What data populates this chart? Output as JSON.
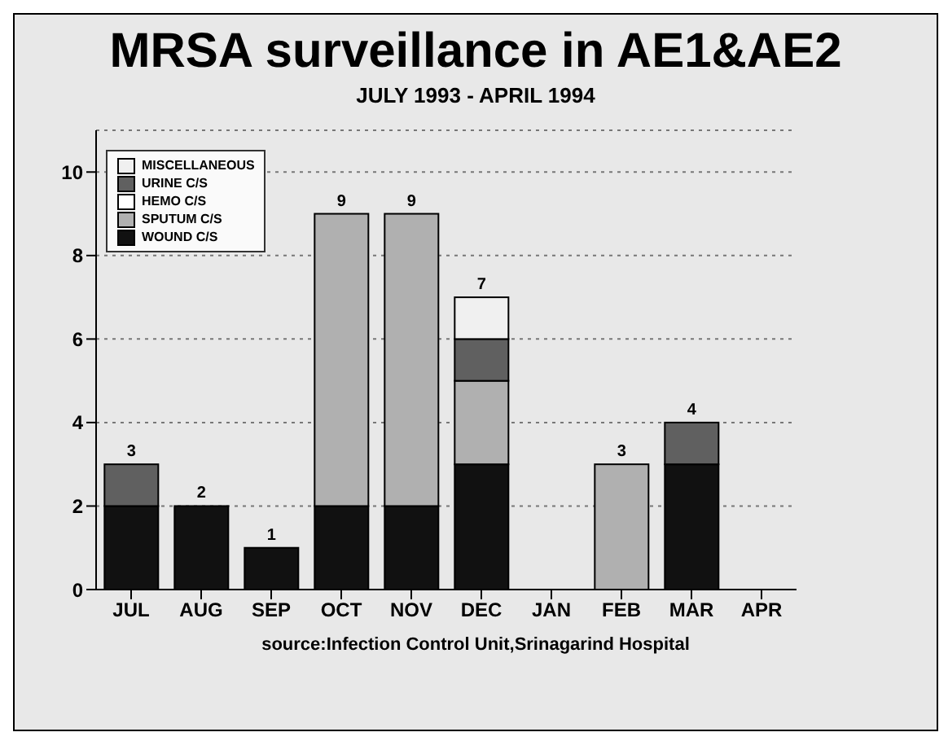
{
  "chart_data": {
    "type": "bar",
    "title": "MRSA surveillance in AE1&AE2",
    "subtitle": "JULY 1993 - APRIL 1994",
    "categories": [
      "JUL",
      "AUG",
      "SEP",
      "OCT",
      "NOV",
      "DEC",
      "JAN",
      "FEB",
      "MAR",
      "APR"
    ],
    "stacked": true,
    "series": [
      {
        "name": "WOUND C/S",
        "color": "#111111",
        "values": [
          2,
          2,
          1,
          2,
          2,
          3,
          0,
          0,
          3,
          0
        ]
      },
      {
        "name": "SPUTUM C/S",
        "color": "#b0b0b0",
        "values": [
          0,
          0,
          0,
          7,
          7,
          2,
          0,
          3,
          0,
          0
        ]
      },
      {
        "name": "HEMO C/S",
        "color": "#ffffff",
        "values": [
          0,
          0,
          0,
          0,
          0,
          0,
          0,
          0,
          0,
          0
        ]
      },
      {
        "name": "URINE C/S",
        "color": "#606060",
        "values": [
          1,
          0,
          0,
          0,
          0,
          1,
          0,
          0,
          1,
          0
        ]
      },
      {
        "name": "MISCELLANEOUS",
        "color": "#f0f0f0",
        "values": [
          0,
          0,
          0,
          0,
          0,
          1,
          0,
          0,
          0,
          0
        ]
      }
    ],
    "totals": [
      "3",
      "2",
      "1",
      "9",
      "9",
      "7",
      null,
      "3",
      "4",
      null
    ],
    "ylim": [
      0,
      11
    ],
    "yticks": [
      0,
      2,
      4,
      6,
      8,
      10
    ],
    "grid": "y",
    "legend": "top left",
    "annotations": [
      "source:Infection Control Unit,Srinagarind Hospital"
    ]
  }
}
